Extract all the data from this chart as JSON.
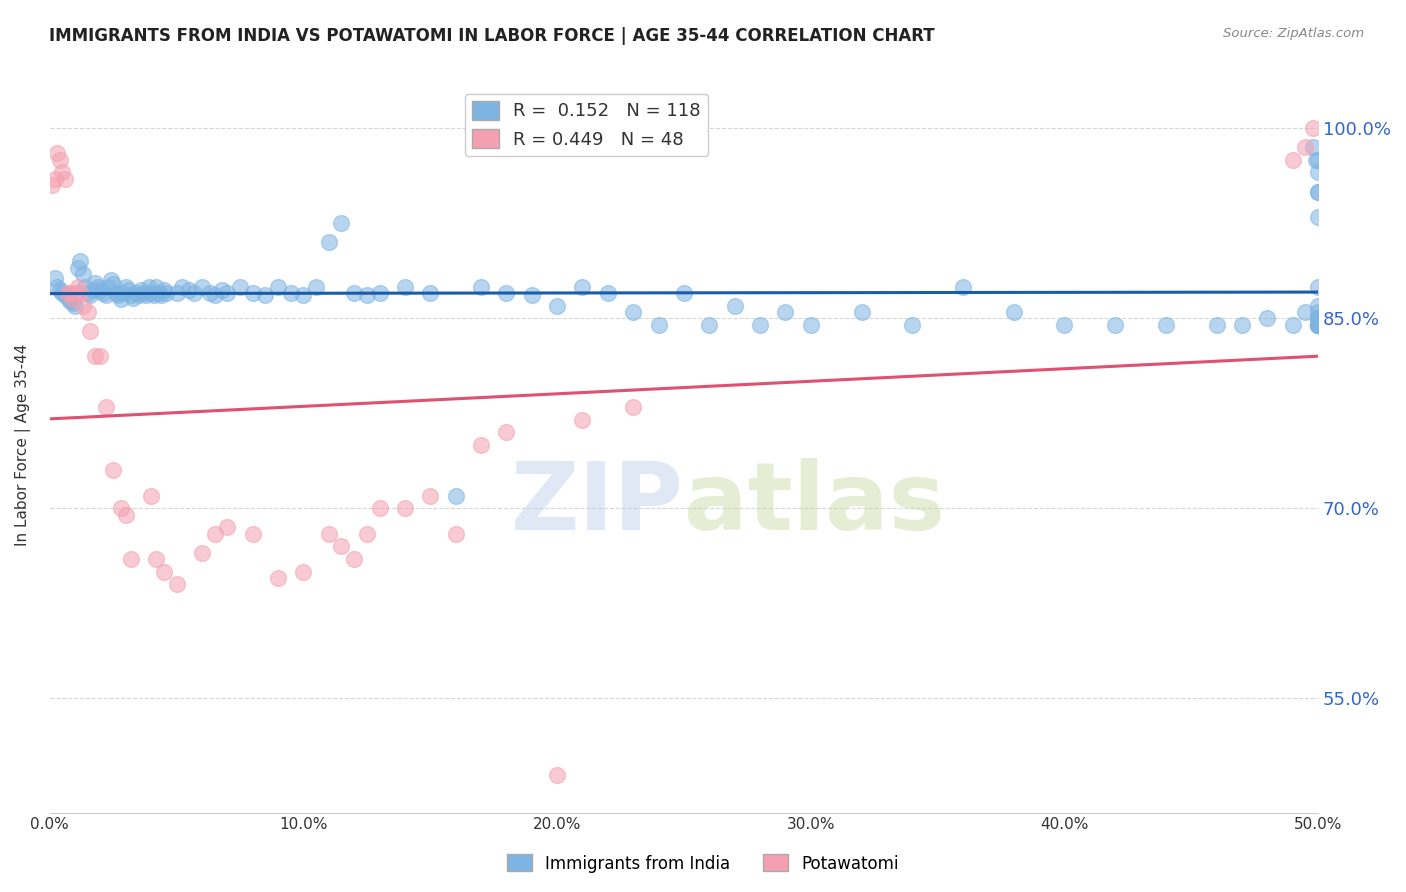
{
  "title": "IMMIGRANTS FROM INDIA VS POTAWATOMI IN LABOR FORCE | AGE 35-44 CORRELATION CHART",
  "source": "Source: ZipAtlas.com",
  "ylabel": "In Labor Force | Age 35-44",
  "xlabel_ticks": [
    "0.0%",
    "10.0%",
    "20.0%",
    "30.0%",
    "40.0%",
    "50.0%"
  ],
  "xlabel_vals": [
    0.0,
    0.1,
    0.2,
    0.3,
    0.4,
    0.5
  ],
  "ylabel_ticks": [
    "55.0%",
    "70.0%",
    "85.0%",
    "100.0%"
  ],
  "ylabel_vals": [
    0.55,
    0.7,
    0.85,
    1.0
  ],
  "xmin": 0.0,
  "xmax": 0.5,
  "ymin": 0.46,
  "ymax": 1.04,
  "blue_R": 0.152,
  "blue_N": 118,
  "pink_R": 0.449,
  "pink_N": 48,
  "blue_color": "#7EB4E2",
  "pink_color": "#F4A0B0",
  "blue_line_color": "#1A5CA8",
  "pink_line_color": "#E05070",
  "legend_label_blue": "Immigrants from India",
  "legend_label_pink": "Potawatomi",
  "watermark_zip": "ZIP",
  "watermark_atlas": "atlas",
  "blue_scatter_x": [
    0.002,
    0.003,
    0.004,
    0.005,
    0.006,
    0.007,
    0.008,
    0.009,
    0.01,
    0.011,
    0.012,
    0.013,
    0.014,
    0.015,
    0.016,
    0.017,
    0.018,
    0.019,
    0.02,
    0.021,
    0.022,
    0.023,
    0.024,
    0.025,
    0.026,
    0.027,
    0.028,
    0.029,
    0.03,
    0.031,
    0.032,
    0.033,
    0.034,
    0.035,
    0.036,
    0.037,
    0.038,
    0.039,
    0.04,
    0.041,
    0.042,
    0.043,
    0.044,
    0.045,
    0.046,
    0.05,
    0.052,
    0.055,
    0.057,
    0.06,
    0.063,
    0.065,
    0.068,
    0.07,
    0.075,
    0.08,
    0.085,
    0.09,
    0.095,
    0.1,
    0.105,
    0.11,
    0.115,
    0.12,
    0.125,
    0.13,
    0.14,
    0.15,
    0.16,
    0.17,
    0.18,
    0.19,
    0.2,
    0.21,
    0.22,
    0.23,
    0.24,
    0.25,
    0.26,
    0.27,
    0.28,
    0.29,
    0.3,
    0.32,
    0.34,
    0.36,
    0.38,
    0.4,
    0.42,
    0.44,
    0.46,
    0.47,
    0.48,
    0.49,
    0.495,
    0.498,
    0.499,
    0.5,
    0.5,
    0.5,
    0.5,
    0.5,
    0.5,
    0.5,
    0.5,
    0.5,
    0.5,
    0.5,
    0.5,
    0.5,
    0.5,
    0.5,
    0.5,
    0.5,
    0.5,
    0.5,
    0.5,
    0.5
  ],
  "blue_scatter_y": [
    0.882,
    0.875,
    0.872,
    0.87,
    0.868,
    0.866,
    0.864,
    0.862,
    0.86,
    0.89,
    0.895,
    0.885,
    0.875,
    0.87,
    0.868,
    0.872,
    0.878,
    0.875,
    0.872,
    0.87,
    0.868,
    0.875,
    0.88,
    0.877,
    0.87,
    0.868,
    0.865,
    0.87,
    0.875,
    0.872,
    0.868,
    0.866,
    0.87,
    0.868,
    0.872,
    0.87,
    0.868,
    0.875,
    0.87,
    0.868,
    0.875,
    0.87,
    0.868,
    0.872,
    0.87,
    0.87,
    0.875,
    0.872,
    0.87,
    0.875,
    0.87,
    0.868,
    0.872,
    0.87,
    0.875,
    0.87,
    0.868,
    0.875,
    0.87,
    0.868,
    0.875,
    0.91,
    0.925,
    0.87,
    0.868,
    0.87,
    0.875,
    0.87,
    0.71,
    0.875,
    0.87,
    0.868,
    0.86,
    0.875,
    0.87,
    0.855,
    0.845,
    0.87,
    0.845,
    0.86,
    0.845,
    0.855,
    0.845,
    0.855,
    0.845,
    0.875,
    0.855,
    0.845,
    0.845,
    0.845,
    0.845,
    0.845,
    0.85,
    0.845,
    0.855,
    0.985,
    0.975,
    0.85,
    0.85,
    0.86,
    0.95,
    0.965,
    0.93,
    0.845,
    0.845,
    0.855,
    0.845,
    0.85,
    0.845,
    0.845,
    0.845,
    0.85,
    0.845,
    0.95,
    0.975,
    0.85,
    0.845,
    0.875
  ],
  "pink_scatter_x": [
    0.001,
    0.002,
    0.003,
    0.004,
    0.005,
    0.006,
    0.007,
    0.008,
    0.009,
    0.01,
    0.011,
    0.012,
    0.013,
    0.015,
    0.016,
    0.018,
    0.02,
    0.022,
    0.025,
    0.028,
    0.03,
    0.032,
    0.04,
    0.042,
    0.045,
    0.05,
    0.06,
    0.065,
    0.07,
    0.08,
    0.09,
    0.1,
    0.11,
    0.115,
    0.12,
    0.125,
    0.13,
    0.14,
    0.15,
    0.16,
    0.17,
    0.18,
    0.2,
    0.21,
    0.23,
    0.49,
    0.495,
    0.498
  ],
  "pink_scatter_y": [
    0.955,
    0.96,
    0.98,
    0.975,
    0.965,
    0.96,
    0.87,
    0.87,
    0.865,
    0.87,
    0.875,
    0.87,
    0.86,
    0.855,
    0.84,
    0.82,
    0.82,
    0.78,
    0.73,
    0.7,
    0.695,
    0.66,
    0.71,
    0.66,
    0.65,
    0.64,
    0.665,
    0.68,
    0.685,
    0.68,
    0.645,
    0.65,
    0.68,
    0.67,
    0.66,
    0.68,
    0.7,
    0.7,
    0.71,
    0.68,
    0.75,
    0.76,
    0.49,
    0.77,
    0.78,
    0.975,
    0.985,
    1.0
  ]
}
